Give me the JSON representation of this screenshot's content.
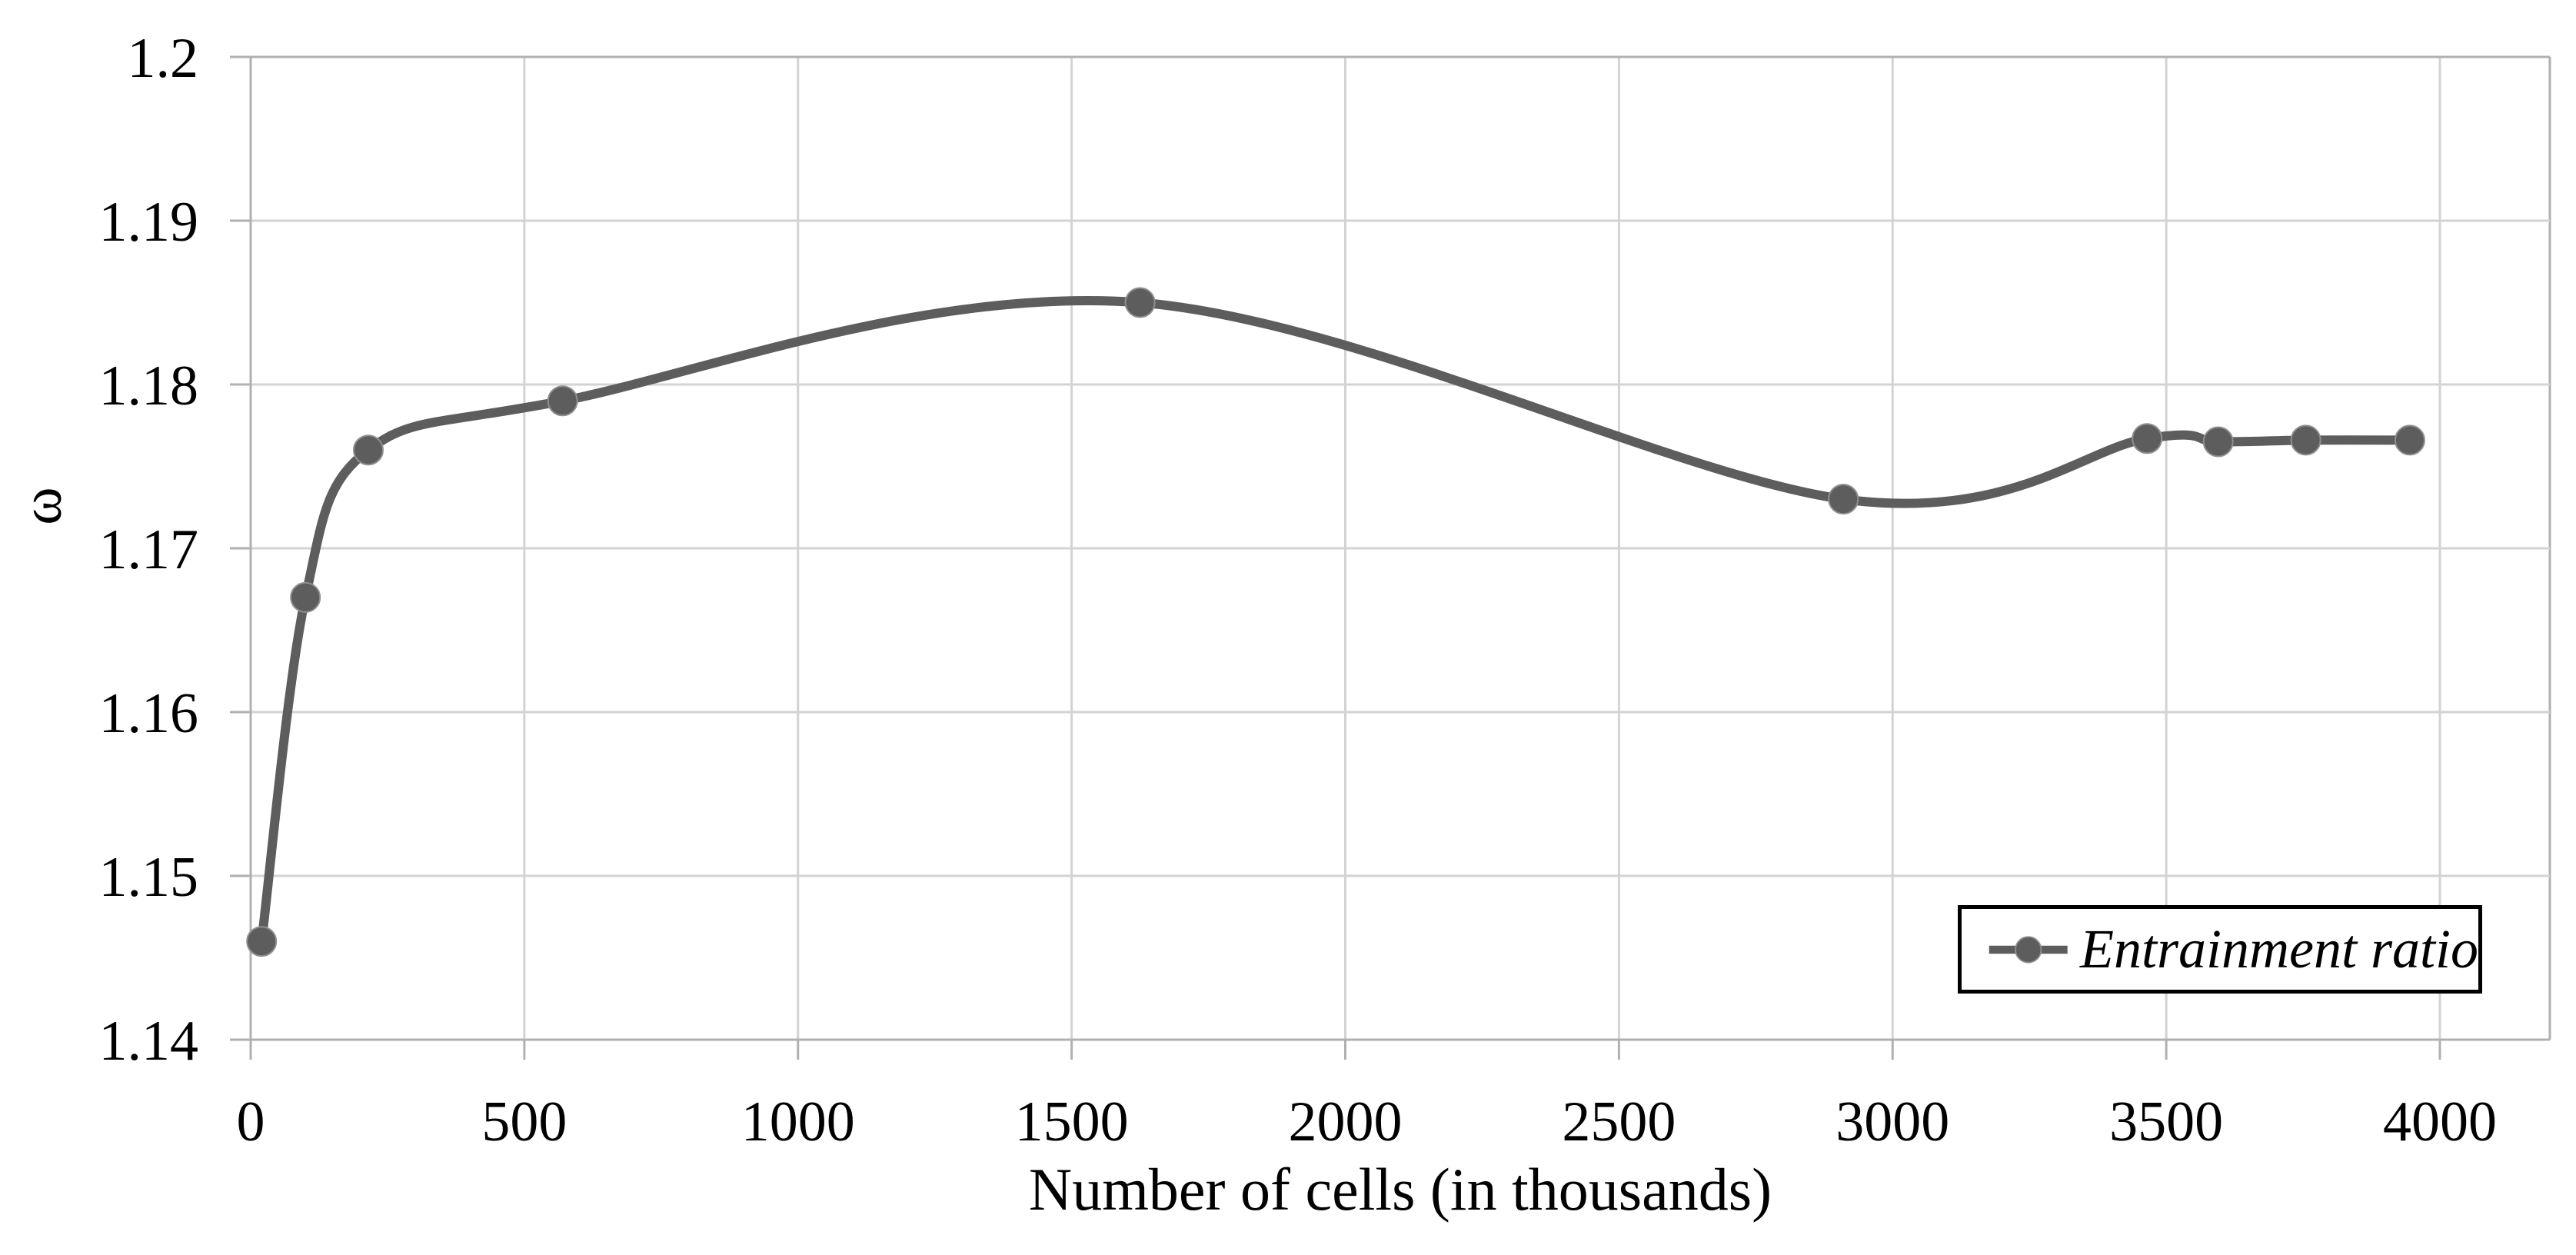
{
  "chart_data": {
    "type": "line",
    "title": "",
    "xlabel": "Number of cells (in thousands)",
    "ylabel": "ω",
    "xlim": [
      0,
      4200
    ],
    "ylim": [
      1.14,
      1.2
    ],
    "grid": true,
    "x_ticks": {
      "values": [
        0,
        500,
        1000,
        1500,
        2000,
        2500,
        3000,
        3500,
        4000
      ],
      "labels": [
        "0",
        "500",
        "1000",
        "1500",
        "2000",
        "2500",
        "3000",
        "3500",
        "4000"
      ]
    },
    "y_ticks": {
      "values": [
        1.14,
        1.15,
        1.16,
        1.17,
        1.18,
        1.19,
        1.2
      ],
      "labels": [
        "1.14",
        "1.15",
        "1.16",
        "1.17",
        "1.18",
        "1.19",
        "1.2"
      ]
    },
    "legend": {
      "label": "Entrainment ratio",
      "position": "bottom-right"
    },
    "series": [
      {
        "name": "Entrainment ratio",
        "smooth": true,
        "marker": "circle",
        "color": "#5d5d5d",
        "points": [
          [
            20,
            1.146
          ],
          [
            100,
            1.167
          ],
          [
            215,
            1.176
          ],
          [
            570,
            1.179
          ],
          [
            1625,
            1.185
          ],
          [
            2910,
            1.173
          ],
          [
            3465,
            1.1767
          ],
          [
            3595,
            1.1765
          ],
          [
            3755,
            1.1766
          ],
          [
            3945,
            1.1766
          ]
        ]
      }
    ],
    "colors": {
      "series": "#5d5d5d",
      "marker_rim": "#8f8f8f",
      "gridline": "#d3d3d3",
      "axis": "#b0b0b0",
      "text": "#000000",
      "legend_border": "#000000",
      "background": "#ffffff"
    }
  }
}
